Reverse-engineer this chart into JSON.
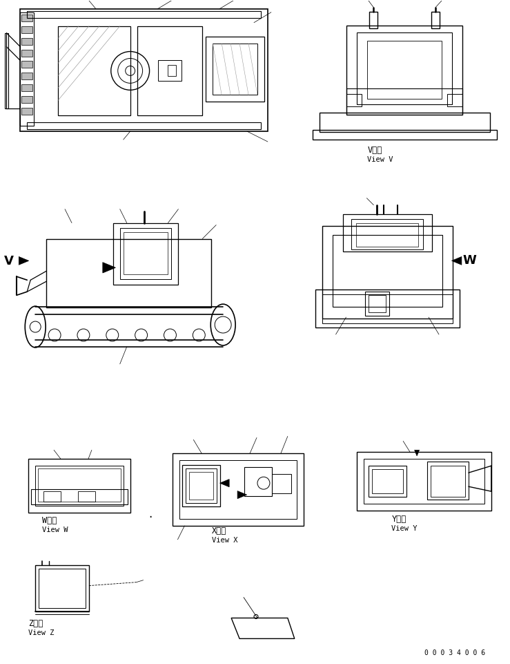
{
  "bg_color": "#ffffff",
  "line_color": "#000000",
  "page_number": "0 0 0 3 4 0 0 6",
  "view_V_label1": "V　視",
  "view_V_label2": "View V",
  "view_W_label1": "W　視",
  "view_W_label2": "View W",
  "view_X_label1": "X　視",
  "view_X_label2": "View X",
  "view_Y_label1": "Y　視",
  "view_Y_label2": "View Y",
  "view_Z_label1": "Z　視",
  "view_Z_label2": "View Z"
}
